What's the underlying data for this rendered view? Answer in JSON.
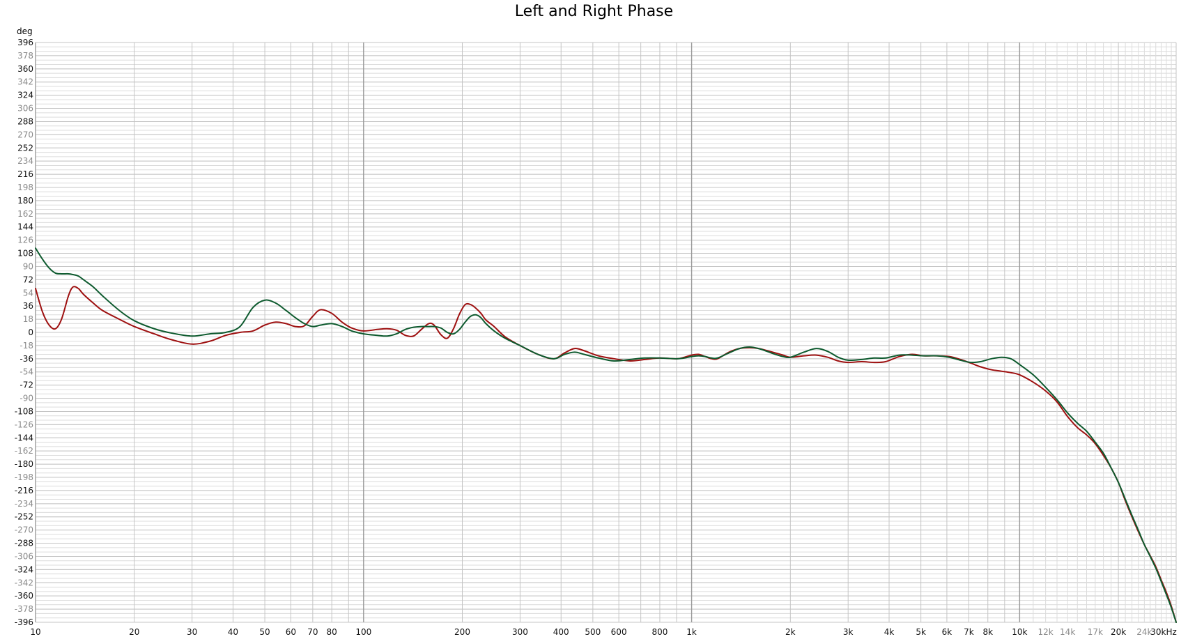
{
  "chart_data": {
    "type": "line",
    "title": "Left and Right Phase",
    "ylabel": "deg",
    "xlabel": "",
    "x_scale": "log",
    "x_unit": "Hz",
    "xlim": [
      10,
      30000
    ],
    "ylim": [
      -396,
      396
    ],
    "grid": true,
    "colors": {
      "left": "#9e1010",
      "right": "#0d5a2e",
      "grid_minor": "#dcdcdc",
      "grid_major": "#c4c4c4",
      "grid_decade": "#9a9a9a"
    },
    "y_ticks": [
      396,
      378,
      360,
      342,
      324,
      306,
      288,
      270,
      252,
      234,
      216,
      198,
      180,
      162,
      144,
      126,
      108,
      90,
      72,
      54,
      36,
      18,
      0,
      -18,
      -36,
      -54,
      -72,
      -90,
      -108,
      -126,
      -144,
      -162,
      -180,
      -198,
      -216,
      -234,
      -252,
      -270,
      -288,
      -306,
      -324,
      -342,
      -360,
      -378,
      -396
    ],
    "y_ticks_dim": [
      378,
      342,
      306,
      270,
      234,
      198,
      162,
      126,
      90,
      54,
      18,
      -18,
      -54,
      -90,
      -126,
      -162,
      -198,
      -234,
      -270,
      -306,
      -342,
      -378
    ],
    "x_ticks": [
      {
        "v": 10,
        "label": "10"
      },
      {
        "v": 20,
        "label": "20"
      },
      {
        "v": 30,
        "label": "30"
      },
      {
        "v": 40,
        "label": "40"
      },
      {
        "v": 50,
        "label": "50"
      },
      {
        "v": 60,
        "label": "60"
      },
      {
        "v": 70,
        "label": "70"
      },
      {
        "v": 80,
        "label": "80"
      },
      {
        "v": 100,
        "label": "100"
      },
      {
        "v": 200,
        "label": "200"
      },
      {
        "v": 300,
        "label": "300"
      },
      {
        "v": 400,
        "label": "400"
      },
      {
        "v": 500,
        "label": "500"
      },
      {
        "v": 600,
        "label": "600"
      },
      {
        "v": 800,
        "label": "800"
      },
      {
        "v": 1000,
        "label": "1k"
      },
      {
        "v": 2000,
        "label": "2k"
      },
      {
        "v": 3000,
        "label": "3k"
      },
      {
        "v": 4000,
        "label": "4k"
      },
      {
        "v": 5000,
        "label": "5k"
      },
      {
        "v": 6000,
        "label": "6k"
      },
      {
        "v": 7000,
        "label": "7k"
      },
      {
        "v": 8000,
        "label": "8k"
      },
      {
        "v": 10000,
        "label": "10k"
      },
      {
        "v": 12000,
        "label": "12k",
        "dim": true
      },
      {
        "v": 14000,
        "label": "14k",
        "dim": true
      },
      {
        "v": 17000,
        "label": "17k",
        "dim": true
      },
      {
        "v": 20000,
        "label": "20k"
      },
      {
        "v": 24000,
        "label": "24k",
        "dim": true
      },
      {
        "v": 30000,
        "label": "30kHz"
      }
    ],
    "series": [
      {
        "key": "left",
        "x": [
          10,
          10.5,
          11,
          11.5,
          12,
          12.6,
          13,
          13.5,
          14,
          15,
          16,
          18,
          20,
          23,
          26,
          30,
          34,
          38,
          42,
          46,
          50,
          54,
          58,
          62,
          66,
          70,
          74,
          80,
          86,
          92,
          100,
          110,
          118,
          126,
          134,
          142,
          150,
          158,
          164,
          172,
          180,
          188,
          196,
          204,
          212,
          220,
          228,
          236,
          250,
          270,
          300,
          340,
          380,
          410,
          440,
          470,
          520,
          580,
          650,
          720,
          800,
          900,
          950,
          1000,
          1050,
          1100,
          1150,
          1200,
          1300,
          1400,
          1500,
          1600,
          1700,
          1800,
          1900,
          2000,
          2200,
          2400,
          2600,
          2800,
          3000,
          3300,
          3600,
          3900,
          4300,
          4700,
          5100,
          5600,
          6100,
          6600,
          7100,
          7600,
          8200,
          8800,
          9400,
          10000,
          11000,
          12000,
          13000,
          14000,
          15000,
          16000,
          17000,
          18000,
          19000,
          20000,
          21000,
          22000,
          23000,
          24000,
          25000,
          26000,
          27000,
          28000,
          29000,
          30000
        ],
        "y": [
          60,
          28,
          10,
          5,
          18,
          50,
          62,
          60,
          52,
          40,
          30,
          18,
          8,
          -2,
          -10,
          -16,
          -12,
          -4,
          0,
          2,
          10,
          14,
          12,
          8,
          9,
          22,
          31,
          26,
          14,
          6,
          2,
          4,
          5,
          3,
          -4,
          -5,
          4,
          12,
          10,
          -3,
          -8,
          5,
          25,
          38,
          38,
          33,
          26,
          17,
          8,
          -6,
          -18,
          -30,
          -36,
          -28,
          -22,
          -25,
          -32,
          -36,
          -39,
          -37,
          -35,
          -36,
          -34,
          -31,
          -30,
          -33,
          -36,
          -36,
          -27,
          -22,
          -21,
          -22,
          -25,
          -28,
          -31,
          -34,
          -32,
          -31,
          -34,
          -39,
          -41,
          -40,
          -41,
          -40,
          -33,
          -30,
          -32,
          -32,
          -33,
          -37,
          -42,
          -47,
          -51,
          -53,
          -55,
          -58,
          -68,
          -80,
          -95,
          -115,
          -130,
          -140,
          -152,
          -168,
          -185,
          -205,
          -230,
          -252,
          -272,
          -290,
          -305,
          -320,
          -338,
          -355,
          -374,
          -396
        ]
      },
      {
        "key": "right",
        "x": [
          10,
          10.5,
          11,
          11.5,
          12,
          12.6,
          13,
          13.5,
          14,
          15,
          16,
          18,
          20,
          23,
          26,
          30,
          34,
          38,
          42,
          46,
          50,
          54,
          58,
          62,
          66,
          70,
          74,
          80,
          86,
          92,
          100,
          110,
          118,
          126,
          134,
          142,
          150,
          158,
          164,
          172,
          180,
          188,
          196,
          204,
          212,
          220,
          228,
          236,
          250,
          270,
          300,
          340,
          380,
          410,
          440,
          470,
          520,
          580,
          650,
          720,
          800,
          900,
          950,
          1000,
          1050,
          1100,
          1150,
          1200,
          1300,
          1400,
          1500,
          1600,
          1700,
          1800,
          1900,
          2000,
          2200,
          2400,
          2600,
          2800,
          3000,
          3300,
          3600,
          3900,
          4300,
          4700,
          5100,
          5600,
          6100,
          6600,
          7100,
          7600,
          8200,
          8800,
          9400,
          10000,
          11000,
          12000,
          13000,
          14000,
          15000,
          16000,
          17000,
          18000,
          19000,
          20000,
          21000,
          22000,
          23000,
          24000,
          25000,
          26000,
          27000,
          28000,
          29000,
          30000
        ],
        "y": [
          115,
          100,
          88,
          81,
          80,
          80,
          79,
          77,
          72,
          62,
          50,
          30,
          16,
          5,
          -1,
          -5,
          -2,
          0,
          8,
          34,
          44,
          40,
          30,
          20,
          12,
          8,
          10,
          12,
          8,
          2,
          -2,
          -4,
          -5,
          -2,
          4,
          7,
          8,
          8,
          8,
          6,
          0,
          -2,
          4,
          14,
          22,
          24,
          20,
          12,
          2,
          -8,
          -18,
          -30,
          -36,
          -30,
          -27,
          -30,
          -35,
          -39,
          -37,
          -35,
          -35,
          -36,
          -35,
          -33,
          -32,
          -33,
          -35,
          -35,
          -28,
          -22,
          -20,
          -22,
          -26,
          -30,
          -33,
          -34,
          -27,
          -22,
          -26,
          -34,
          -38,
          -37,
          -35,
          -35,
          -31,
          -31,
          -32,
          -32,
          -34,
          -38,
          -41,
          -40,
          -36,
          -34,
          -36,
          -44,
          -58,
          -75,
          -92,
          -110,
          -124,
          -135,
          -150,
          -165,
          -185,
          -205,
          -228,
          -250,
          -270,
          -290,
          -306,
          -322,
          -340,
          -358,
          -376,
          -396
        ]
      }
    ]
  }
}
